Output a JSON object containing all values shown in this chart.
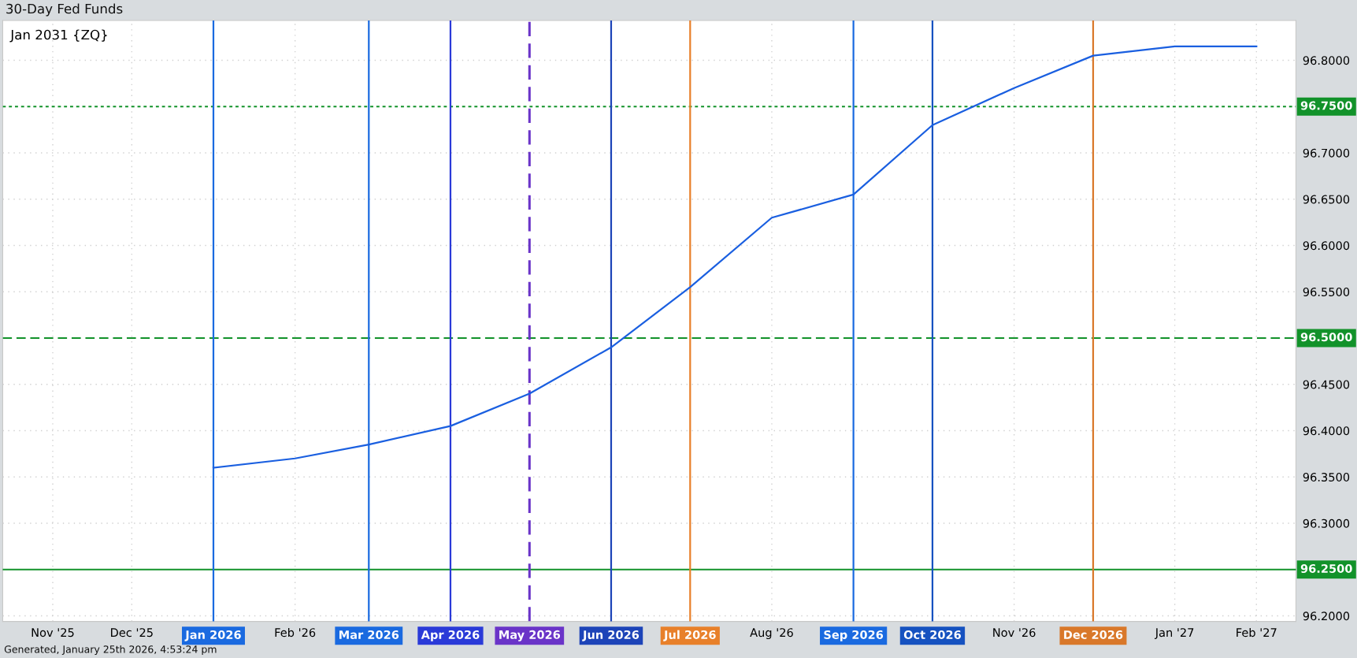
{
  "chart_data": {
    "type": "line",
    "title": "30-Day Fed Funds",
    "subtitle": "Jan 2031 {ZQ}",
    "annotations": [
      "Generated, January 25th 2026, 4:53:24 pm"
    ],
    "x": [
      "2026-01",
      "2026-02",
      "2026-03",
      "2026-04",
      "2026-05",
      "2026-06",
      "2026-07",
      "2026-08",
      "2026-09",
      "2026-10",
      "2026-11",
      "2026-12",
      "2027-01",
      "2027-02"
    ],
    "series": [
      {
        "color": "#1a5fe0",
        "values": [
          96.36,
          96.37,
          96.385,
          96.405,
          96.44,
          96.49,
          96.555,
          96.63,
          96.655,
          96.73,
          96.77,
          96.805,
          96.815,
          96.815
        ]
      }
    ],
    "xlim": [
      "2025-10-13",
      "2027-02-16"
    ],
    "xticks": [
      {
        "value": "2025-11",
        "label": "Nov '25"
      },
      {
        "value": "2025-12",
        "label": "Dec '25"
      },
      {
        "value": "2026-02",
        "label": "Feb '26"
      },
      {
        "value": "2026-08",
        "label": "Aug '26"
      },
      {
        "value": "2026-11",
        "label": "Nov '26"
      },
      {
        "value": "2027-01",
        "label": "Jan '27"
      },
      {
        "value": "2027-02",
        "label": "Feb '27"
      }
    ],
    "ylim": [
      96.194,
      96.843
    ],
    "yticks": [
      {
        "value": 96.2,
        "label": "96.2000"
      },
      {
        "value": 96.3,
        "label": "96.3000"
      },
      {
        "value": 96.35,
        "label": "96.3500"
      },
      {
        "value": 96.4,
        "label": "96.4000"
      },
      {
        "value": 96.45,
        "label": "96.4500"
      },
      {
        "value": 96.55,
        "label": "96.5500"
      },
      {
        "value": 96.6,
        "label": "96.6000"
      },
      {
        "value": 96.65,
        "label": "96.6500"
      },
      {
        "value": 96.7,
        "label": "96.7000"
      },
      {
        "value": 96.8,
        "label": "96.8000"
      }
    ],
    "ref_lines": [
      {
        "axis": "y",
        "value": 96.75,
        "label": "96.7500",
        "color": "#12922a",
        "line_style": "dotted"
      },
      {
        "axis": "y",
        "value": 96.5,
        "label": "96.5000",
        "color": "#12922a",
        "line_style": "dashed"
      },
      {
        "axis": "y",
        "value": 96.25,
        "label": "96.2500",
        "color": "#12922a",
        "line_style": "solid"
      },
      {
        "axis": "x",
        "value": "2026-01",
        "label": "Jan 2026",
        "color": "#1a6ae0",
        "line_style": "solid"
      },
      {
        "axis": "x",
        "value": "2026-03",
        "label": "Mar 2026",
        "color": "#1a6ae0",
        "line_style": "solid"
      },
      {
        "axis": "x",
        "value": "2026-04",
        "label": "Apr 2026",
        "color": "#2a3ad8",
        "line_style": "solid"
      },
      {
        "axis": "x",
        "value": "2026-05",
        "label": "May 2026",
        "color": "#6a34c8",
        "line_style": "dashed"
      },
      {
        "axis": "x",
        "value": "2026-06",
        "label": "Jun 2026",
        "color": "#1d44b8",
        "line_style": "solid"
      },
      {
        "axis": "x",
        "value": "2026-07",
        "label": "Jul 2026",
        "color": "#e8802a",
        "line_style": "solid"
      },
      {
        "axis": "x",
        "value": "2026-09",
        "label": "Sep 2026",
        "color": "#1a6ae0",
        "line_style": "solid"
      },
      {
        "axis": "x",
        "value": "2026-10",
        "label": "Oct 2026",
        "color": "#1652c0",
        "line_style": "solid"
      },
      {
        "axis": "x",
        "value": "2026-12",
        "label": "Dec 2026",
        "color": "#d9782a",
        "line_style": "solid"
      }
    ],
    "grid": true,
    "marker": "none",
    "line_style": "solid"
  }
}
